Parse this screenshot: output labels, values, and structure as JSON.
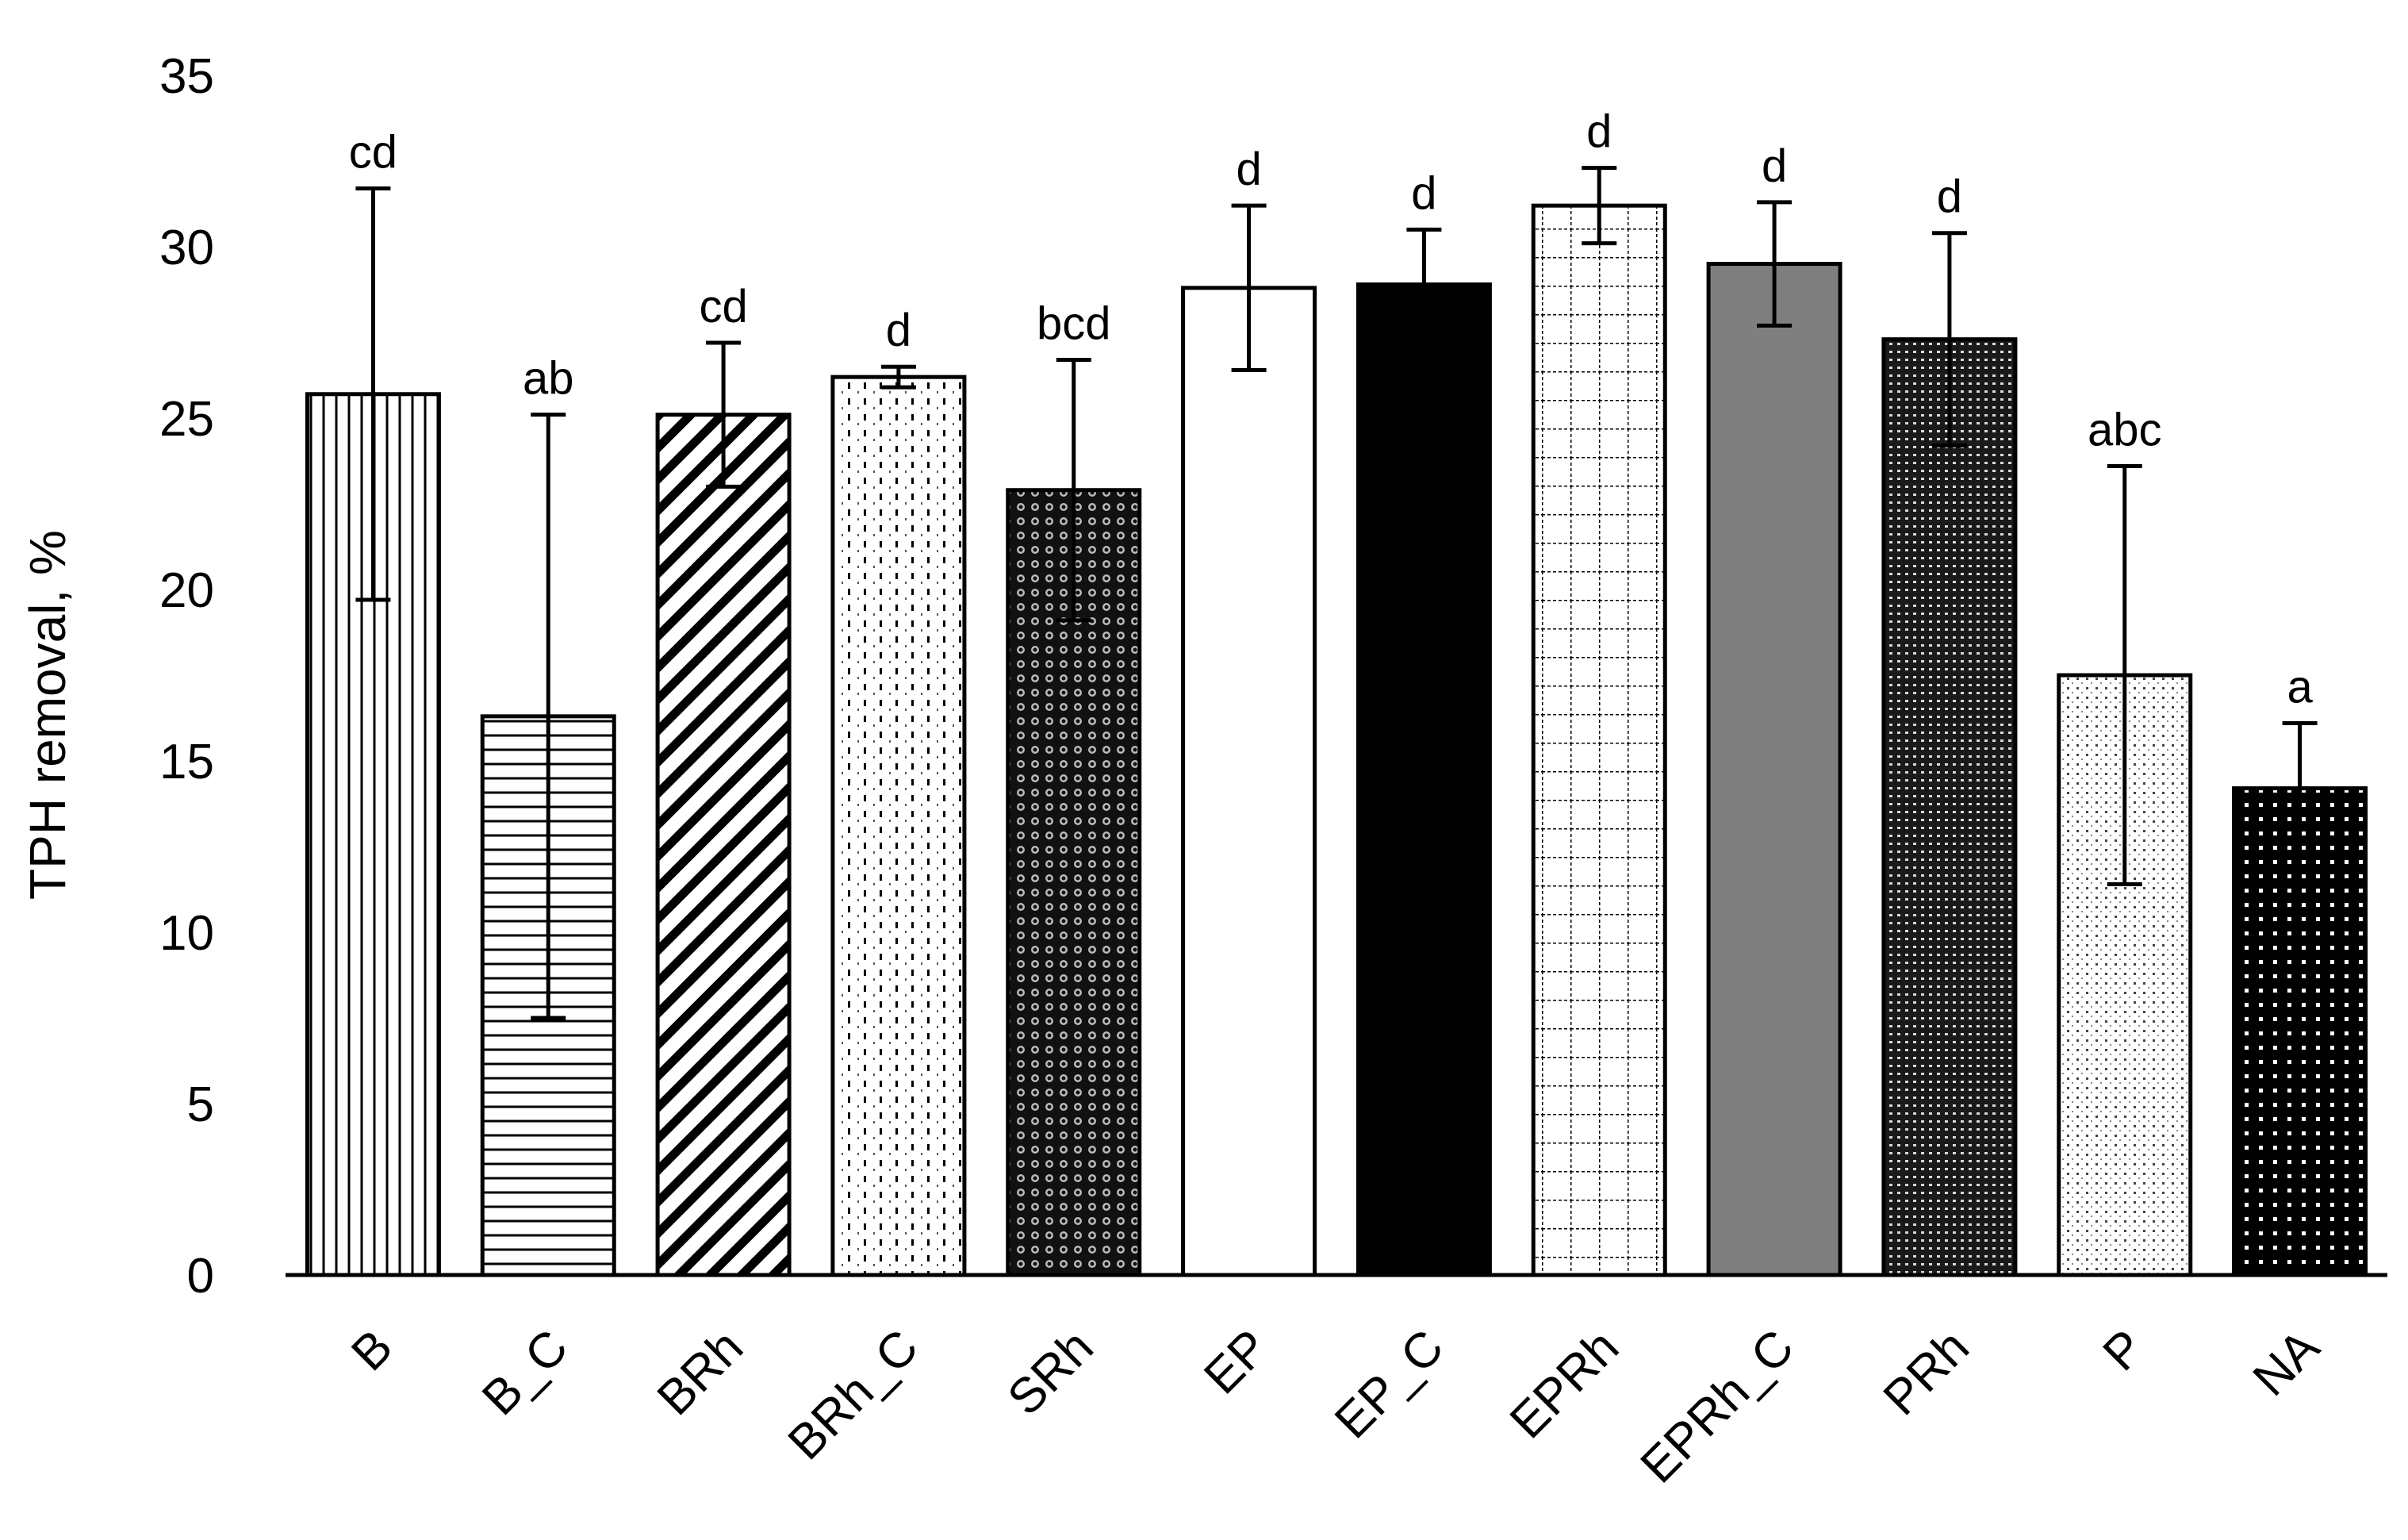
{
  "chart_data": {
    "type": "bar",
    "title": "",
    "xlabel": "",
    "ylabel": "TPH removal, %",
    "ylim": [
      0,
      35
    ],
    "yticks": [
      0,
      5,
      10,
      15,
      20,
      25,
      30,
      35
    ],
    "grid": false,
    "legend": "none",
    "categories": [
      "B",
      "B_C",
      "BRh",
      "BRh_C",
      "SRh",
      "EP",
      "EP_C",
      "EPRh",
      "EPRh_C",
      "PRh",
      "P",
      "NA"
    ],
    "values": [
      25.7,
      16.3,
      25.1,
      26.2,
      22.9,
      28.8,
      28.9,
      31.2,
      29.5,
      27.3,
      17.5,
      14.2
    ],
    "errors": [
      6.0,
      8.8,
      2.1,
      0.3,
      3.8,
      2.4,
      1.6,
      1.1,
      1.8,
      3.1,
      6.1,
      1.9
    ],
    "significance": [
      "cd",
      "ab",
      "cd",
      "d",
      "bcd",
      "d",
      "d",
      "d",
      "d",
      "d",
      "abc",
      "a"
    ],
    "fill_patterns": [
      "vertical-lines",
      "horizontal-lines",
      "diagonal-stripes",
      "dashed-dots",
      "dark-circles",
      "white",
      "black",
      "grid-squares",
      "gray",
      "dark-dots",
      "light-dots",
      "black-dots"
    ]
  }
}
